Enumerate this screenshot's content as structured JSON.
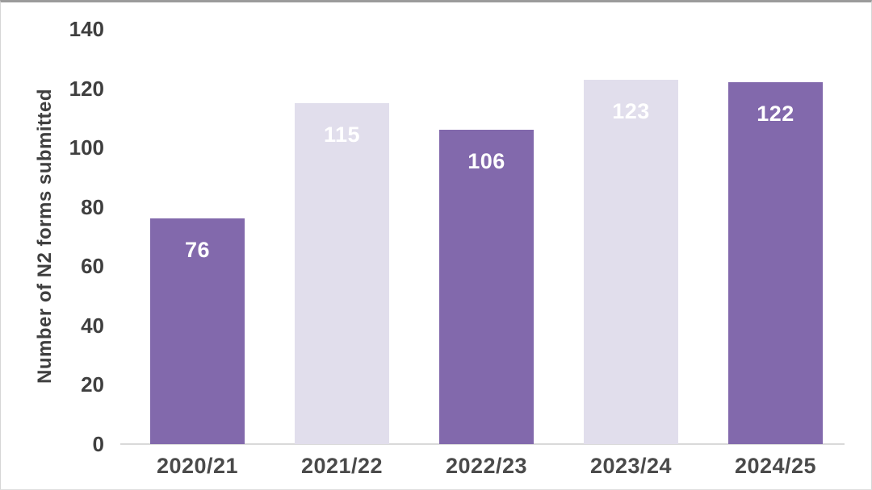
{
  "chart_data": {
    "type": "bar",
    "categories": [
      "2020/21",
      "2021/22",
      "2022/23",
      "2023/24",
      "2024/25"
    ],
    "values": [
      76,
      115,
      106,
      123,
      122
    ],
    "title": "",
    "xlabel": "",
    "ylabel": "Number of N2 forms submitted",
    "ylim": [
      0,
      140
    ],
    "yticks": [
      0,
      20,
      40,
      60,
      80,
      100,
      120,
      140
    ],
    "grid": false,
    "legend": "none",
    "data_labels": "inside-end",
    "bar_colors": [
      "#8269AC",
      "#E1DEEC",
      "#8269AC",
      "#E1DEEC",
      "#8269AC"
    ],
    "data_label_color": "#FFFFFF"
  },
  "colors": {
    "background": "#FFFFFF",
    "axis_text": "#3F3F3F",
    "category_text": "#4A4A4A",
    "baseline": "#D9D9D9",
    "frame_border": "#D6D6D6",
    "frame_top_border": "#9B9B9B",
    "bar_dark": "#8269AC",
    "bar_light": "#E1DEEC"
  }
}
